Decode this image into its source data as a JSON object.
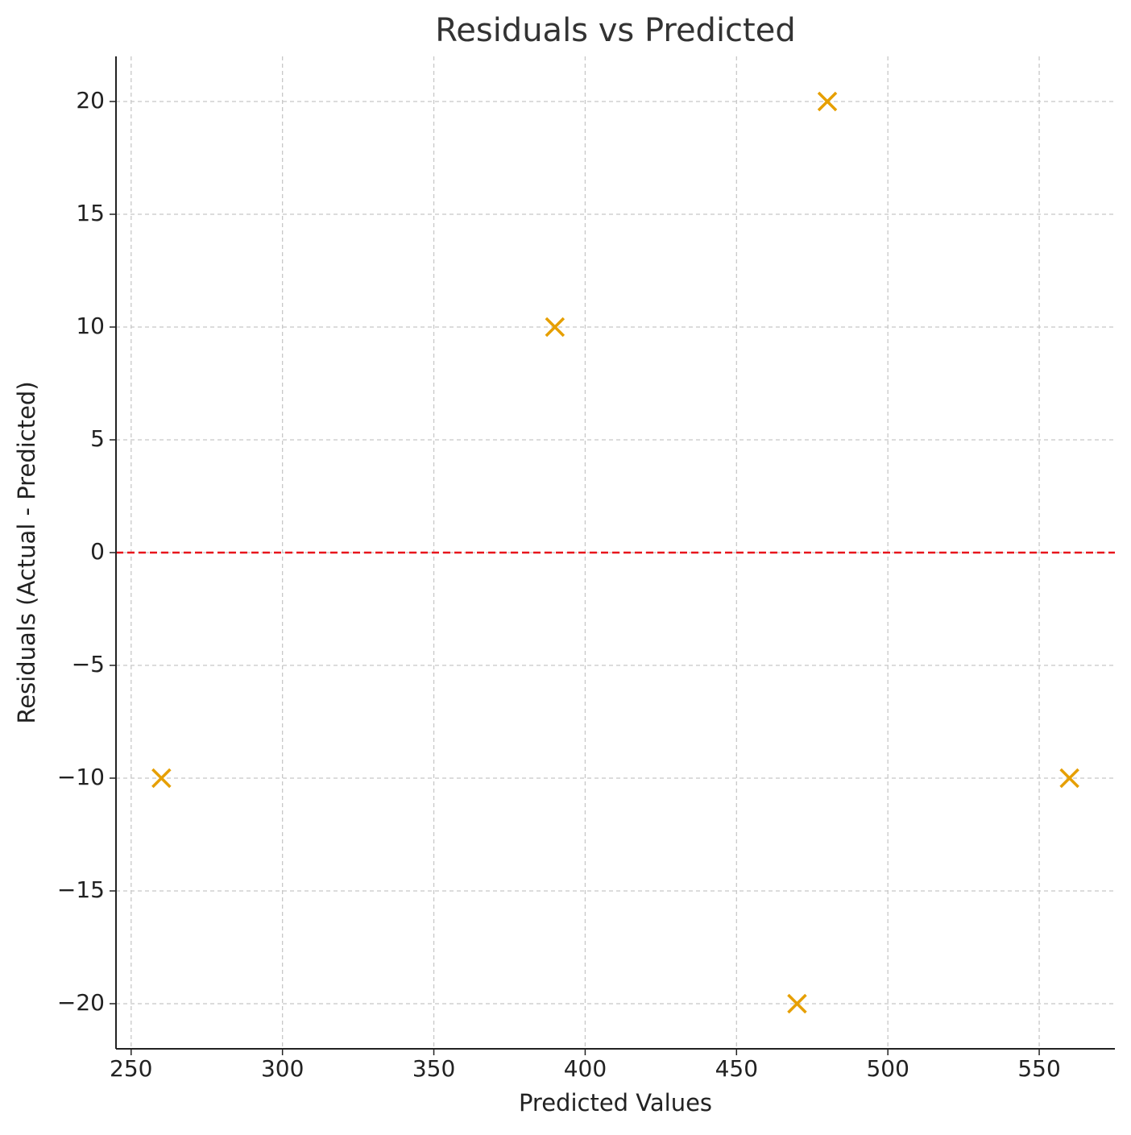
{
  "chart_data": {
    "type": "scatter",
    "title": "Residuals vs Predicted",
    "x_label": "Predicted Values",
    "y_label": "Residuals (Actual - Predicted)",
    "series": [
      {
        "color": "#e69f00",
        "marker": "x",
        "x": [
          260,
          390,
          480,
          470,
          560
        ],
        "values": [
          -10,
          10,
          20,
          -20,
          -10
        ]
      }
    ],
    "xlim": [
      245,
      575
    ],
    "xticks": [
      250,
      300,
      350,
      400,
      450,
      500,
      550
    ],
    "ylim": [
      -22,
      22
    ],
    "yticks": [
      {
        "value": -20,
        "label": "−20"
      },
      {
        "value": -15,
        "label": "−15"
      },
      {
        "value": -10,
        "label": "−10"
      },
      {
        "value": -5,
        "label": "−5"
      },
      0,
      5,
      10,
      15,
      20
    ],
    "reference_line": {
      "y": 0,
      "color": "#e8141c",
      "style": "dashed"
    },
    "grid": true
  }
}
